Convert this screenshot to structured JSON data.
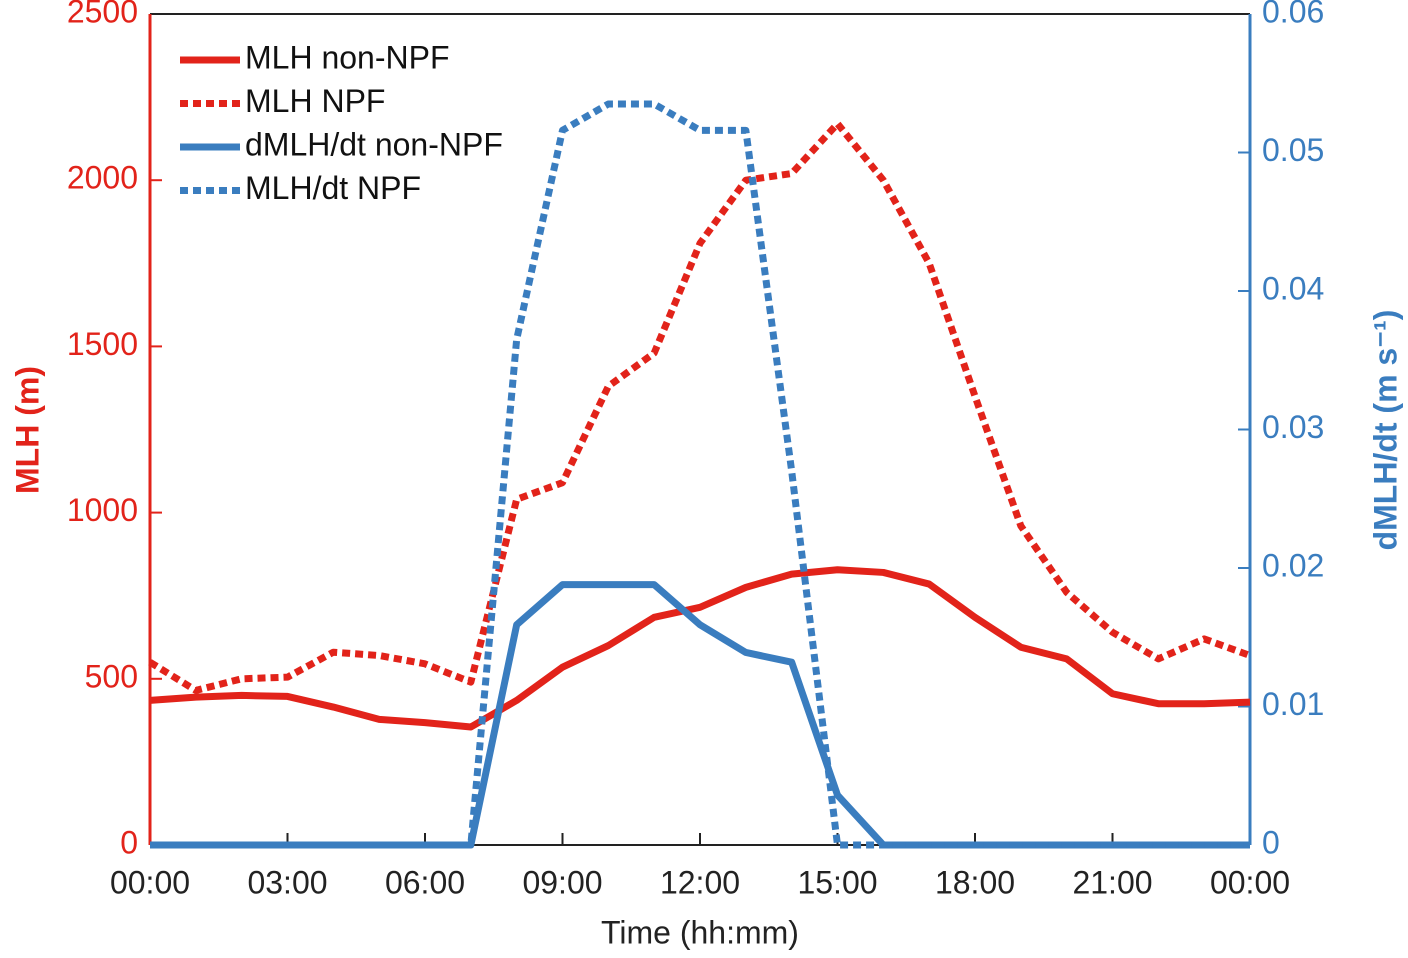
{
  "chart_data": {
    "type": "line",
    "xlabel": "Time (hh:mm)",
    "ylabel": "MLH (m)",
    "y2label": "dMLH/dt (m s⁻¹)",
    "x": [
      0,
      1,
      2,
      3,
      4,
      5,
      6,
      7,
      8,
      9,
      10,
      11,
      12,
      13,
      14,
      15,
      16,
      17,
      18,
      19,
      20,
      21,
      22,
      23,
      24
    ],
    "xlim": [
      0,
      24
    ],
    "xticks": [
      {
        "value": 0,
        "label": "00:00"
      },
      {
        "value": 3,
        "label": "03:00"
      },
      {
        "value": 6,
        "label": "06:00"
      },
      {
        "value": 9,
        "label": "09:00"
      },
      {
        "value": 12,
        "label": "12:00"
      },
      {
        "value": 15,
        "label": "15:00"
      },
      {
        "value": 18,
        "label": "18:00"
      },
      {
        "value": 21,
        "label": "21:00"
      },
      {
        "value": 24,
        "label": "00:00"
      }
    ],
    "ylim": [
      0,
      2500
    ],
    "yticks": [
      0,
      500,
      1000,
      1500,
      2000,
      2500
    ],
    "y2lim": [
      0,
      0.06
    ],
    "y2ticks": [
      0,
      0.01,
      0.02,
      0.03,
      0.04,
      0.05,
      0.06
    ],
    "legend": "upper left",
    "series": [
      {
        "name": "MLH non-NPF",
        "color": "#e2231a",
        "style": "solid",
        "values": [
          435,
          445,
          450,
          447,
          415,
          378,
          368,
          355,
          435,
          535,
          600,
          685,
          715,
          775,
          815,
          828,
          820,
          785,
          685,
          595,
          560,
          455,
          425,
          425,
          430
        ]
      },
      {
        "name": "MLH NPF",
        "color": "#e2231a",
        "style": "dotted",
        "values": [
          550,
          465,
          500,
          505,
          580,
          570,
          545,
          490,
          1040,
          1090,
          1380,
          1480,
          1810,
          2000,
          2020,
          2170,
          2000,
          1750,
          1350,
          960,
          760,
          640,
          560,
          620,
          570
        ]
      },
      {
        "name": "dMLH/dt non-NPF",
        "color": "#3a7dbf",
        "style": "solid",
        "axis": "y2",
        "values": [
          0,
          0,
          0,
          0,
          0,
          0,
          0,
          0,
          0.0159,
          0.0188,
          0.0188,
          0.0188,
          0.0159,
          0.0139,
          0.0132,
          0.0036,
          0,
          0,
          0,
          0,
          0,
          0,
          0,
          0,
          0
        ]
      },
      {
        "name": "MLH/dt NPF",
        "color": "#3a7dbf",
        "style": "dotted",
        "axis": "y2",
        "values": [
          0,
          0,
          0,
          0,
          0,
          0,
          0,
          0,
          0.0365,
          0.0516,
          0.0535,
          0.0535,
          0.0516,
          0.0516,
          0.027,
          0,
          0,
          0,
          0,
          0,
          0,
          0,
          0,
          0,
          0
        ]
      }
    ]
  }
}
